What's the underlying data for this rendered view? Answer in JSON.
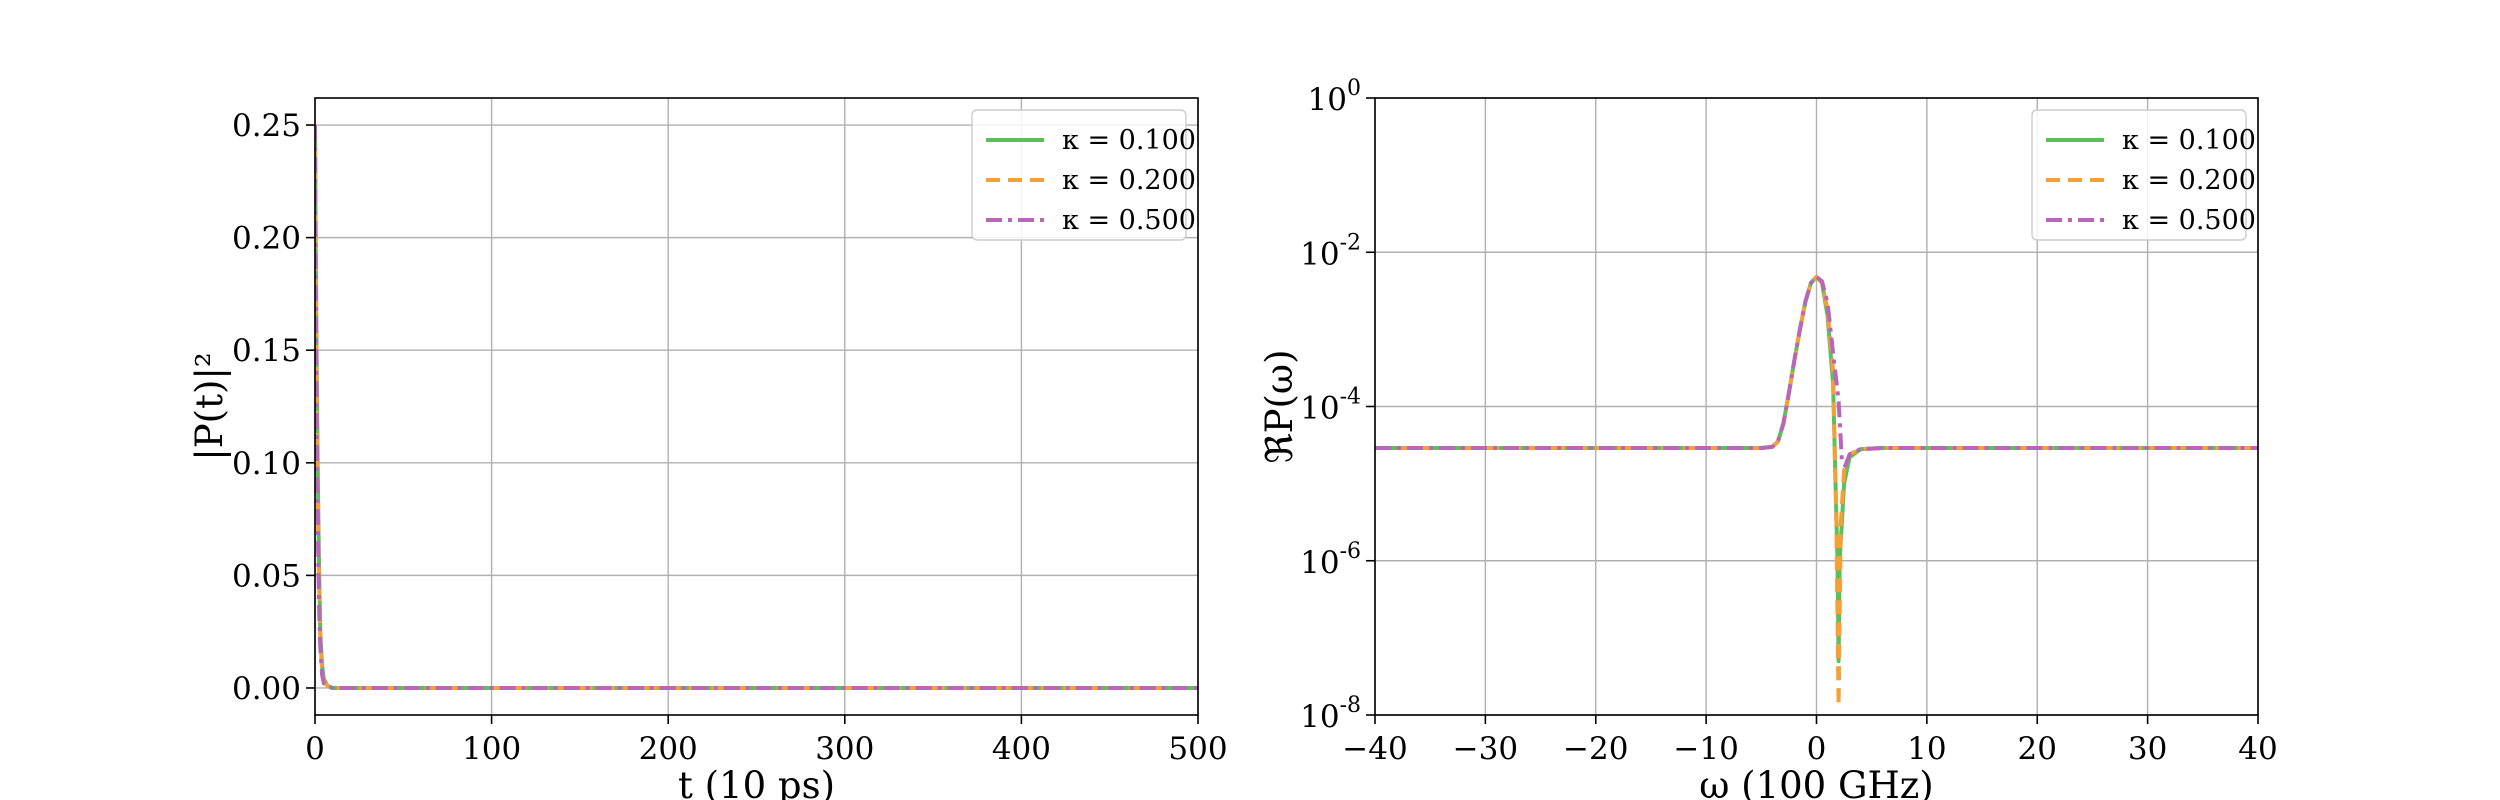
{
  "chart_data": [
    {
      "type": "line",
      "xlabel": "t (10 ps)",
      "ylabel": "|P(t)|²",
      "xlim": [
        0,
        500
      ],
      "ylim": [
        -0.012,
        0.262
      ],
      "xticks": [
        0,
        100,
        200,
        300,
        400,
        500
      ],
      "yticks": [
        0.0,
        0.05,
        0.1,
        0.15,
        0.2,
        0.25
      ],
      "xtick_labels": [
        "0",
        "100",
        "200",
        "300",
        "400",
        "500"
      ],
      "ytick_labels": [
        "0.00",
        "0.05",
        "0.10",
        "0.15",
        "0.20",
        "0.25"
      ],
      "grid": true,
      "legend_position": "top-right",
      "series": [
        {
          "name": "κ = 0.100",
          "color": "#5cbf5c",
          "style": "solid",
          "x": [
            0,
            0.5,
            1,
            1.5,
            2,
            2.5,
            3,
            4,
            5,
            7,
            10,
            50,
            100,
            200,
            300,
            400,
            500
          ],
          "y": [
            0.25,
            0.19,
            0.14,
            0.1,
            0.07,
            0.045,
            0.025,
            0.01,
            0.004,
            0.001,
            0.0,
            0.0,
            0.0,
            0.0,
            0.0,
            0.0,
            0.0
          ]
        },
        {
          "name": "κ = 0.200",
          "color": "#f5a037",
          "style": "dashed",
          "x": [
            0,
            0.5,
            1,
            1.5,
            2,
            2.5,
            3,
            4,
            5,
            7,
            10,
            50,
            100,
            200,
            300,
            400,
            500
          ],
          "y": [
            0.25,
            0.18,
            0.13,
            0.09,
            0.06,
            0.04,
            0.022,
            0.008,
            0.003,
            0.001,
            0.0,
            0.0,
            0.0,
            0.0,
            0.0,
            0.0,
            0.0
          ]
        },
        {
          "name": "κ = 0.500",
          "color": "#b866b8",
          "style": "dashdot",
          "x": [
            0,
            0.5,
            1,
            1.5,
            2,
            2.5,
            3,
            4,
            5,
            7,
            10,
            50,
            100,
            200,
            300,
            400,
            500
          ],
          "y": [
            0.25,
            0.17,
            0.12,
            0.08,
            0.05,
            0.03,
            0.018,
            0.006,
            0.002,
            0.0005,
            0.0,
            0.0,
            0.0,
            0.0,
            0.0,
            0.0,
            0.0
          ]
        }
      ]
    },
    {
      "type": "line",
      "xlabel": "ω (100 GHz)",
      "ylabel": "ℜP(ω)",
      "xscale": "linear",
      "yscale": "log",
      "xlim": [
        -40,
        40
      ],
      "ylim": [
        1e-08,
        1
      ],
      "xticks": [
        -40,
        -30,
        -20,
        -10,
        0,
        10,
        20,
        30,
        40
      ],
      "yticks": [
        -8,
        -6,
        -4,
        -2,
        0
      ],
      "xtick_labels": [
        "−40",
        "−30",
        "−20",
        "−10",
        "0",
        "10",
        "20",
        "30",
        "40"
      ],
      "ytick_labels": [
        {
          "base": "10",
          "exp": "-8"
        },
        {
          "base": "10",
          "exp": "-6"
        },
        {
          "base": "10",
          "exp": "-4"
        },
        {
          "base": "10",
          "exp": "-2"
        },
        {
          "base": "10",
          "exp": "0"
        }
      ],
      "grid": true,
      "legend_position": "top-right",
      "series": [
        {
          "name": "κ = 0.100",
          "color": "#5cbf5c",
          "style": "solid",
          "x": [
            -40,
            -20,
            -5,
            -4,
            -3.5,
            -3,
            -2.5,
            -2,
            -1.5,
            -1,
            -0.5,
            0,
            0.5,
            1,
            1.5,
            1.9,
            2.0,
            2.1,
            2.5,
            3,
            4,
            6,
            10,
            20,
            40
          ],
          "y": [
            2.9e-05,
            2.9e-05,
            2.9e-05,
            3e-05,
            3.5e-05,
            6e-05,
            0.00015,
            0.0004,
            0.001,
            0.0023,
            0.004,
            0.0048,
            0.004,
            0.0015,
            0.0002,
            1e-06,
            5e-08,
            1e-06,
            1e-05,
            2.2e-05,
            2.8e-05,
            2.9e-05,
            2.9e-05,
            2.9e-05,
            2.9e-05
          ]
        },
        {
          "name": "κ = 0.200",
          "color": "#f5a037",
          "style": "dashed",
          "x": [
            -40,
            -20,
            -5,
            -4,
            -3.5,
            -3,
            -2.5,
            -2,
            -1.5,
            -1,
            -0.5,
            0,
            0.5,
            1,
            1.5,
            1.8,
            2.0,
            2.2,
            2.5,
            3,
            4,
            6,
            10,
            20,
            40
          ],
          "y": [
            2.9e-05,
            2.9e-05,
            2.9e-05,
            3e-05,
            3.5e-05,
            6e-05,
            0.00015,
            0.0004,
            0.001,
            0.0023,
            0.004,
            0.0048,
            0.004,
            0.0018,
            0.0003,
            3e-06,
            1.3e-08,
            3e-06,
            1.5e-05,
            2.4e-05,
            2.8e-05,
            2.9e-05,
            2.9e-05,
            2.9e-05,
            2.9e-05
          ]
        },
        {
          "name": "κ = 0.500",
          "color": "#b866b8",
          "style": "dashdot",
          "x": [
            -40,
            -20,
            -5,
            -4,
            -3.5,
            -3,
            -2.5,
            -2,
            -1.5,
            -1,
            -0.5,
            0,
            0.5,
            1,
            1.5,
            2,
            2.3,
            2.6,
            3,
            4,
            6,
            10,
            20,
            40
          ],
          "y": [
            2.9e-05,
            2.9e-05,
            2.9e-05,
            3e-05,
            3.5e-05,
            6e-05,
            0.00015,
            0.0004,
            0.001,
            0.0023,
            0.004,
            0.0048,
            0.0042,
            0.0022,
            0.0005,
            0.00012,
            2e-05,
            1.7e-05,
            2.4e-05,
            2.8e-05,
            2.9e-05,
            2.9e-05,
            2.9e-05,
            2.9e-05
          ]
        }
      ]
    }
  ]
}
